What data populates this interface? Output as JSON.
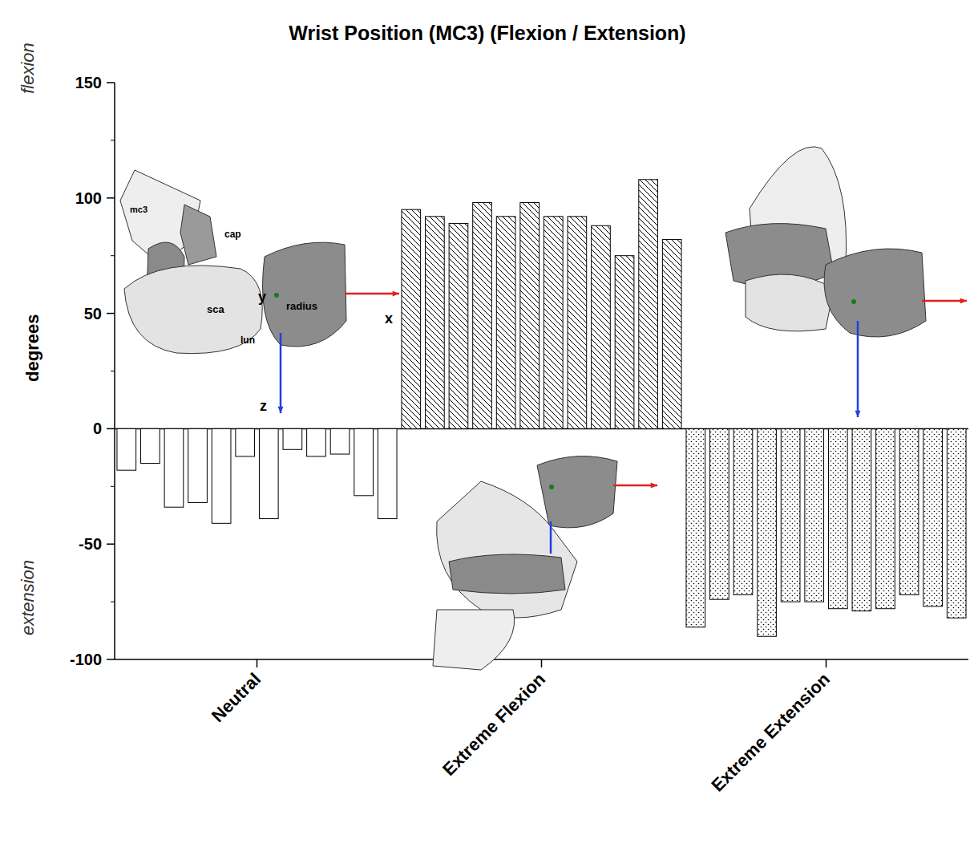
{
  "chart_data": {
    "type": "bar",
    "title": "Wrist Position (MC3) (Flexion / Extension)",
    "y_label": "degrees",
    "categories": [
      "Neutral",
      "Extreme Flexion",
      "Extreme Extension"
    ],
    "values": [
      [
        -18,
        -15,
        -34,
        -32,
        -41,
        -12,
        -39,
        -9,
        -12,
        -11,
        -29,
        -39
      ],
      [
        95,
        92,
        89,
        98,
        92,
        98,
        92,
        92,
        88,
        75,
        108,
        82
      ],
      [
        -86,
        -74,
        -72,
        -90,
        -75,
        -75,
        -78,
        -79,
        -78,
        -72,
        -77,
        -82
      ]
    ],
    "ylim": [
      -100,
      150
    ],
    "yticks": [
      -100,
      -50,
      0,
      50,
      100,
      150
    ],
    "grid": false,
    "annotations": [
      "flexion",
      "extension",
      "mc3",
      "cap",
      "sca",
      "lun",
      "radius",
      "y",
      "x",
      "z"
    ]
  }
}
